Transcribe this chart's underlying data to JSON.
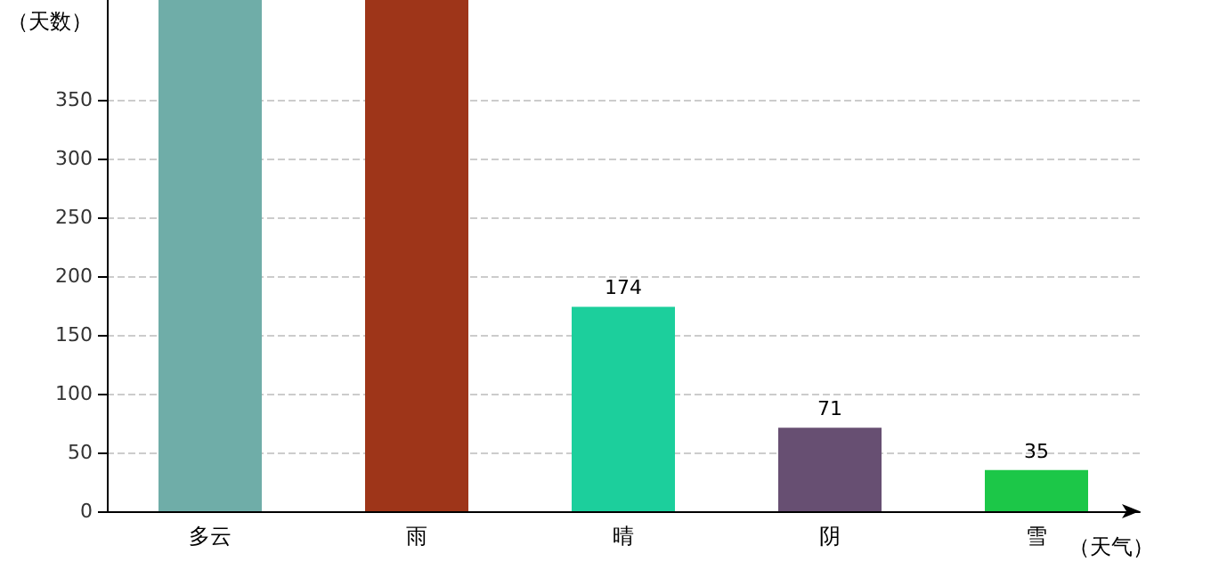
{
  "chart_data": {
    "type": "bar",
    "xlabel": "（天气）",
    "ylabel": "（天数）",
    "categories": [
      "多云",
      "雨",
      "晴",
      "阴",
      "雪"
    ],
    "values": [
      435,
      435,
      174,
      71,
      35
    ],
    "colors": [
      "#6fada8",
      "#9e3519",
      "#1ccf9c",
      "#674f72",
      "#1cc748"
    ],
    "value_labels": [
      null,
      null,
      "174",
      "71",
      "35"
    ],
    "ylim": [
      0,
      435
    ],
    "yticks": [
      0,
      50,
      100,
      150,
      200,
      250,
      300,
      350
    ],
    "grid": "y"
  }
}
